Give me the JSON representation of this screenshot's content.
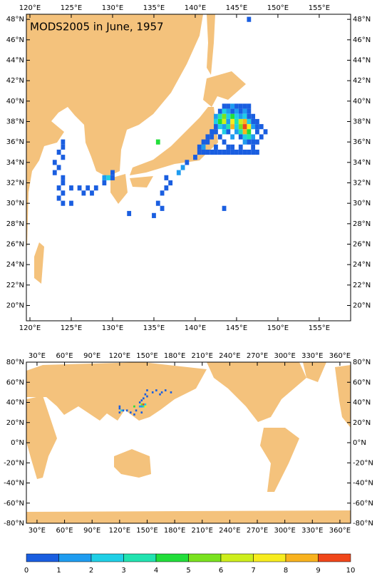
{
  "title": "MODS2005 in June, 1957",
  "regional_map": {
    "lon_range": [
      119.57,
      158.8
    ],
    "lat_range": [
      18.5,
      48.5
    ],
    "lon_ticks": [
      {
        "value": 120,
        "label": "120°E"
      },
      {
        "value": 125,
        "label": "125°E"
      },
      {
        "value": 130,
        "label": "130°E"
      },
      {
        "value": 135,
        "label": "135°E"
      },
      {
        "value": 140,
        "label": "140°E"
      },
      {
        "value": 145,
        "label": "145°E"
      },
      {
        "value": 150,
        "label": "150°E"
      },
      {
        "value": 155,
        "label": "155°E"
      }
    ],
    "lat_ticks": [
      {
        "value": 20,
        "label": "20°N"
      },
      {
        "value": 22,
        "label": "22°N"
      },
      {
        "value": 24,
        "label": "24°N"
      },
      {
        "value": 26,
        "label": "26°N"
      },
      {
        "value": 28,
        "label": "28°N"
      },
      {
        "value": 30,
        "label": "30°N"
      },
      {
        "value": 32,
        "label": "32°N"
      },
      {
        "value": 34,
        "label": "34°N"
      },
      {
        "value": 36,
        "label": "36°N"
      },
      {
        "value": 38,
        "label": "38°N"
      },
      {
        "value": 40,
        "label": "40°N"
      },
      {
        "value": 42,
        "label": "42°N"
      },
      {
        "value": 44,
        "label": "44°N"
      },
      {
        "value": 46,
        "label": "46°N"
      },
      {
        "value": 48,
        "label": "48°N"
      }
    ],
    "cells": [
      [
        124,
        36,
        1
      ],
      [
        124,
        35.5,
        1
      ],
      [
        123.5,
        35,
        1
      ],
      [
        124,
        34.5,
        1
      ],
      [
        123,
        34,
        1
      ],
      [
        123.5,
        33.5,
        1
      ],
      [
        123,
        33,
        1
      ],
      [
        124,
        32.5,
        1
      ],
      [
        124,
        32,
        1
      ],
      [
        123.5,
        31.5,
        1
      ],
      [
        124,
        31,
        1
      ],
      [
        123.5,
        30.5,
        1
      ],
      [
        124,
        30,
        1
      ],
      [
        125,
        30,
        1
      ],
      [
        125,
        31.5,
        1
      ],
      [
        126,
        31.5,
        1
      ],
      [
        127,
        31.5,
        1
      ],
      [
        126.5,
        31,
        1
      ],
      [
        127.5,
        31,
        1
      ],
      [
        128,
        31.5,
        1
      ],
      [
        129,
        32,
        1
      ],
      [
        129,
        32.5,
        2
      ],
      [
        129.5,
        32.5,
        3
      ],
      [
        130,
        33,
        1
      ],
      [
        130,
        32.5,
        1
      ],
      [
        132,
        29,
        1
      ],
      [
        135.5,
        36,
        5
      ],
      [
        136.5,
        32.5,
        1
      ],
      [
        137,
        32,
        1
      ],
      [
        136.5,
        31.5,
        1
      ],
      [
        136,
        31,
        1
      ],
      [
        135.5,
        30,
        1
      ],
      [
        136,
        29.5,
        1
      ],
      [
        135,
        28.8,
        1
      ],
      [
        138,
        33,
        2
      ],
      [
        138.5,
        33.5,
        2
      ],
      [
        139,
        34,
        1
      ],
      [
        140,
        34.5,
        1
      ],
      [
        143.5,
        29.5,
        1
      ],
      [
        146.5,
        48,
        1
      ],
      [
        143.5,
        39.5,
        1
      ],
      [
        144,
        39.5,
        1
      ],
      [
        144.5,
        39.5,
        2
      ],
      [
        145,
        39.5,
        1
      ],
      [
        145.5,
        39.5,
        1
      ],
      [
        146,
        39.5,
        1
      ],
      [
        146.5,
        39.5,
        1
      ],
      [
        143,
        39,
        1
      ],
      [
        143.5,
        39,
        3
      ],
      [
        144,
        39,
        2
      ],
      [
        144.5,
        39,
        1
      ],
      [
        145,
        39,
        2
      ],
      [
        145.5,
        39,
        1
      ],
      [
        146,
        39,
        2
      ],
      [
        146.5,
        39,
        1
      ],
      [
        142.5,
        38.5,
        2
      ],
      [
        143,
        38.5,
        4
      ],
      [
        143.5,
        38.5,
        6
      ],
      [
        144,
        38.5,
        3
      ],
      [
        144.5,
        38.5,
        5
      ],
      [
        145,
        38.5,
        3
      ],
      [
        145.5,
        38.5,
        2
      ],
      [
        146,
        38.5,
        3
      ],
      [
        146.5,
        38.5,
        1
      ],
      [
        147,
        38.5,
        1
      ],
      [
        142.5,
        38,
        3
      ],
      [
        143,
        38,
        5
      ],
      [
        143.5,
        38,
        7
      ],
      [
        144,
        38,
        2
      ],
      [
        144.5,
        38,
        8
      ],
      [
        145,
        38,
        4
      ],
      [
        145.5,
        38,
        7
      ],
      [
        146,
        38,
        9
      ],
      [
        146.5,
        38,
        3
      ],
      [
        147,
        38,
        1
      ],
      [
        147.5,
        38,
        1
      ],
      [
        142.5,
        37.5,
        1
      ],
      [
        143,
        37.5,
        3
      ],
      [
        143.5,
        37.5,
        2
      ],
      [
        144,
        37.5,
        4
      ],
      [
        144.5,
        37.5,
        9
      ],
      [
        145,
        37.5,
        3
      ],
      [
        145.5,
        37.5,
        6
      ],
      [
        146,
        37.5,
        10
      ],
      [
        146.5,
        37.5,
        8
      ],
      [
        147,
        37.5,
        2
      ],
      [
        147.5,
        37.5,
        1
      ],
      [
        148,
        37.5,
        1
      ],
      [
        142,
        37,
        1
      ],
      [
        142.5,
        37,
        1
      ],
      [
        143.5,
        37,
        3
      ],
      [
        144,
        37,
        1
      ],
      [
        145,
        37,
        2
      ],
      [
        145.5,
        37,
        4
      ],
      [
        146,
        37,
        9
      ],
      [
        146.5,
        37,
        5
      ],
      [
        147.5,
        37,
        1
      ],
      [
        148.5,
        37,
        1
      ],
      [
        141.5,
        36.5,
        1
      ],
      [
        142,
        36.5,
        1
      ],
      [
        143,
        36.5,
        1
      ],
      [
        144.5,
        36.5,
        2
      ],
      [
        145.5,
        36.5,
        1
      ],
      [
        146,
        36.5,
        3
      ],
      [
        146.5,
        36.5,
        4
      ],
      [
        147,
        36.5,
        2
      ],
      [
        148,
        36.5,
        1
      ],
      [
        141,
        36,
        1
      ],
      [
        141.5,
        36,
        1
      ],
      [
        143.5,
        36,
        1
      ],
      [
        146,
        36,
        2
      ],
      [
        146.5,
        36,
        1
      ],
      [
        147,
        36,
        1
      ],
      [
        147.5,
        36,
        1
      ],
      [
        140.5,
        35.5,
        1
      ],
      [
        141,
        35.5,
        2
      ],
      [
        142.5,
        35.5,
        1
      ],
      [
        144,
        35.5,
        1
      ],
      [
        144.5,
        35.5,
        1
      ],
      [
        145.5,
        35.5,
        1
      ],
      [
        147,
        35.5,
        1
      ],
      [
        140.5,
        35,
        1
      ],
      [
        141,
        35,
        1
      ],
      [
        141.5,
        35,
        1
      ],
      [
        142,
        35,
        1
      ],
      [
        142.5,
        35,
        1
      ],
      [
        143,
        35,
        1
      ],
      [
        143.5,
        35,
        1
      ],
      [
        144,
        35,
        1
      ],
      [
        144.5,
        35,
        1
      ],
      [
        145,
        35,
        1
      ],
      [
        145.5,
        35,
        1
      ],
      [
        146,
        35,
        1
      ],
      [
        146.5,
        35,
        1
      ],
      [
        147,
        35,
        1
      ],
      [
        147.5,
        35,
        1
      ]
    ]
  },
  "global_map": {
    "lon_range": [
      18.4,
      371.7
    ],
    "lat_range": [
      -80,
      80
    ],
    "lon_ticks": [
      {
        "value": 30,
        "label": "30°E"
      },
      {
        "value": 60,
        "label": "60°E"
      },
      {
        "value": 90,
        "label": "90°E"
      },
      {
        "value": 120,
        "label": "120°E"
      },
      {
        "value": 150,
        "label": "150°E"
      },
      {
        "value": 180,
        "label": "180°E"
      },
      {
        "value": 210,
        "label": "210°E"
      },
      {
        "value": 240,
        "label": "240°E"
      },
      {
        "value": 270,
        "label": "270°E"
      },
      {
        "value": 300,
        "label": "300°E"
      },
      {
        "value": 330,
        "label": "330°E"
      },
      {
        "value": 360,
        "label": "360°E"
      }
    ],
    "lat_ticks": [
      {
        "value": -80,
        "label": "-80°N"
      },
      {
        "value": -60,
        "label": "-60°N"
      },
      {
        "value": -40,
        "label": "-40°N"
      },
      {
        "value": -20,
        "label": "-20°N"
      },
      {
        "value": 0,
        "label": "0°N"
      },
      {
        "value": 20,
        "label": "20°N"
      },
      {
        "value": 40,
        "label": "40°N"
      },
      {
        "value": 60,
        "label": "60°N"
      },
      {
        "value": 80,
        "label": "80°N"
      }
    ],
    "cells": [
      [
        120,
        36,
        1
      ],
      [
        120,
        34,
        1
      ],
      [
        122,
        32,
        3
      ],
      [
        120,
        30,
        1
      ],
      [
        124,
        32,
        1
      ],
      [
        128,
        32,
        1
      ],
      [
        132,
        30,
        1
      ],
      [
        136,
        36,
        5
      ],
      [
        138,
        32,
        1
      ],
      [
        136,
        28,
        1
      ],
      [
        142,
        36,
        2
      ],
      [
        144,
        38,
        6
      ],
      [
        146,
        38,
        10
      ],
      [
        148,
        36,
        8
      ],
      [
        146,
        36,
        4
      ],
      [
        144,
        36,
        2
      ],
      [
        148,
        38,
        3
      ],
      [
        142,
        40,
        1
      ],
      [
        144,
        42,
        1
      ],
      [
        146,
        44,
        1
      ],
      [
        148,
        48,
        1
      ],
      [
        150,
        52,
        1
      ],
      [
        156,
        50,
        1
      ],
      [
        160,
        52,
        1
      ],
      [
        166,
        50,
        1
      ],
      [
        170,
        52,
        1
      ],
      [
        176,
        50,
        1
      ],
      [
        164,
        48,
        1
      ],
      [
        144,
        30,
        1
      ],
      [
        150,
        46,
        1
      ]
    ]
  },
  "colorbar": {
    "ticks": [
      0,
      1,
      2,
      3,
      4,
      5,
      6,
      7,
      8,
      9,
      10
    ],
    "colors": [
      "#1a5ee0",
      "#1e9cf0",
      "#1fcfe6",
      "#21e3b0",
      "#22de3a",
      "#7ae21f",
      "#cdee1c",
      "#f7ec1e",
      "#f8b21e",
      "#f0461a"
    ]
  }
}
